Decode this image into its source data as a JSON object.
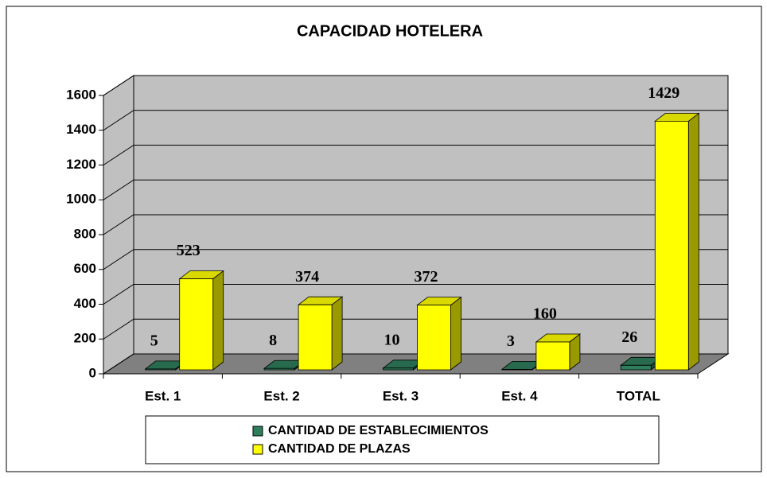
{
  "chart_data": {
    "type": "bar3d",
    "title": "CAPACIDAD HOTELERA",
    "categories": [
      "Est. 1",
      "Est. 2",
      "Est. 3",
      "Est. 4",
      "TOTAL"
    ],
    "series": [
      {
        "name": "CANTIDAD DE ESTABLECIMIENTOS",
        "color": "#2e7d5b",
        "values": [
          5,
          8,
          10,
          3,
          26
        ]
      },
      {
        "name": "CANTIDAD DE PLAZAS",
        "color": "#ffff00",
        "values": [
          523,
          374,
          372,
          160,
          1429
        ]
      }
    ],
    "ylim": [
      0,
      1600
    ],
    "yticks": [
      0,
      200,
      400,
      600,
      800,
      1000,
      1200,
      1400,
      1600
    ],
    "grid": true
  }
}
